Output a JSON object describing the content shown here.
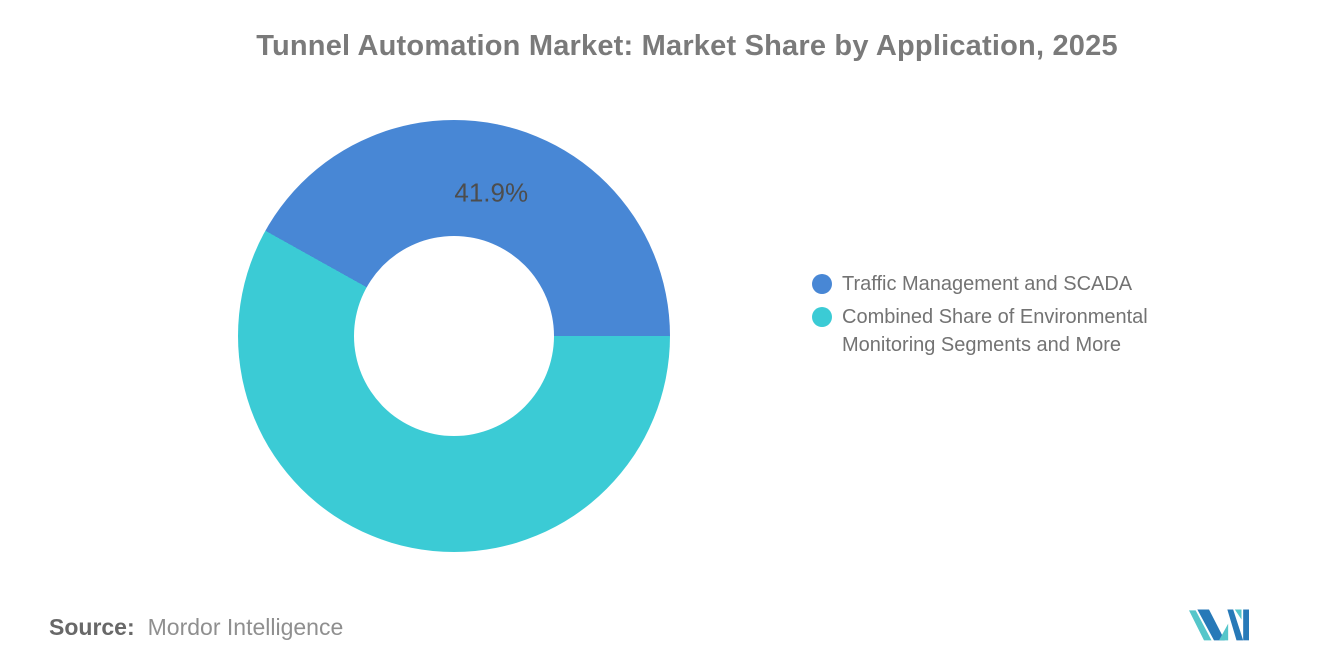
{
  "title": "Tunnel Automation Market: Market Share by Application, 2025",
  "chart_data": {
    "type": "pie",
    "subtype": "donut",
    "title": "Tunnel Automation Market: Market Share by Application, 2025",
    "inner_radius_pct": 46,
    "start_angle": "east",
    "direction": "teal slice clockwise from east; blue slice fills remainder through top",
    "series": [
      {
        "name": "Traffic Management and SCADA",
        "value": 41.9,
        "data_label": "41.9%",
        "color": "#4887d5"
      },
      {
        "name": "Combined Share of Environmental Monitoring Segments and More",
        "value": 58.1,
        "data_label": "",
        "color": "#3bcbd5"
      }
    ],
    "legend_position": "right",
    "data_labels_note": "only the blue slice shows a percentage label inside the ring"
  },
  "source": {
    "prefix": "Source:",
    "value": "Mordor Intelligence"
  },
  "branding": {
    "logo_name": "mordor-intelligence-logo",
    "logo_blue": "#2779b8",
    "logo_teal": "#55c6ca"
  }
}
